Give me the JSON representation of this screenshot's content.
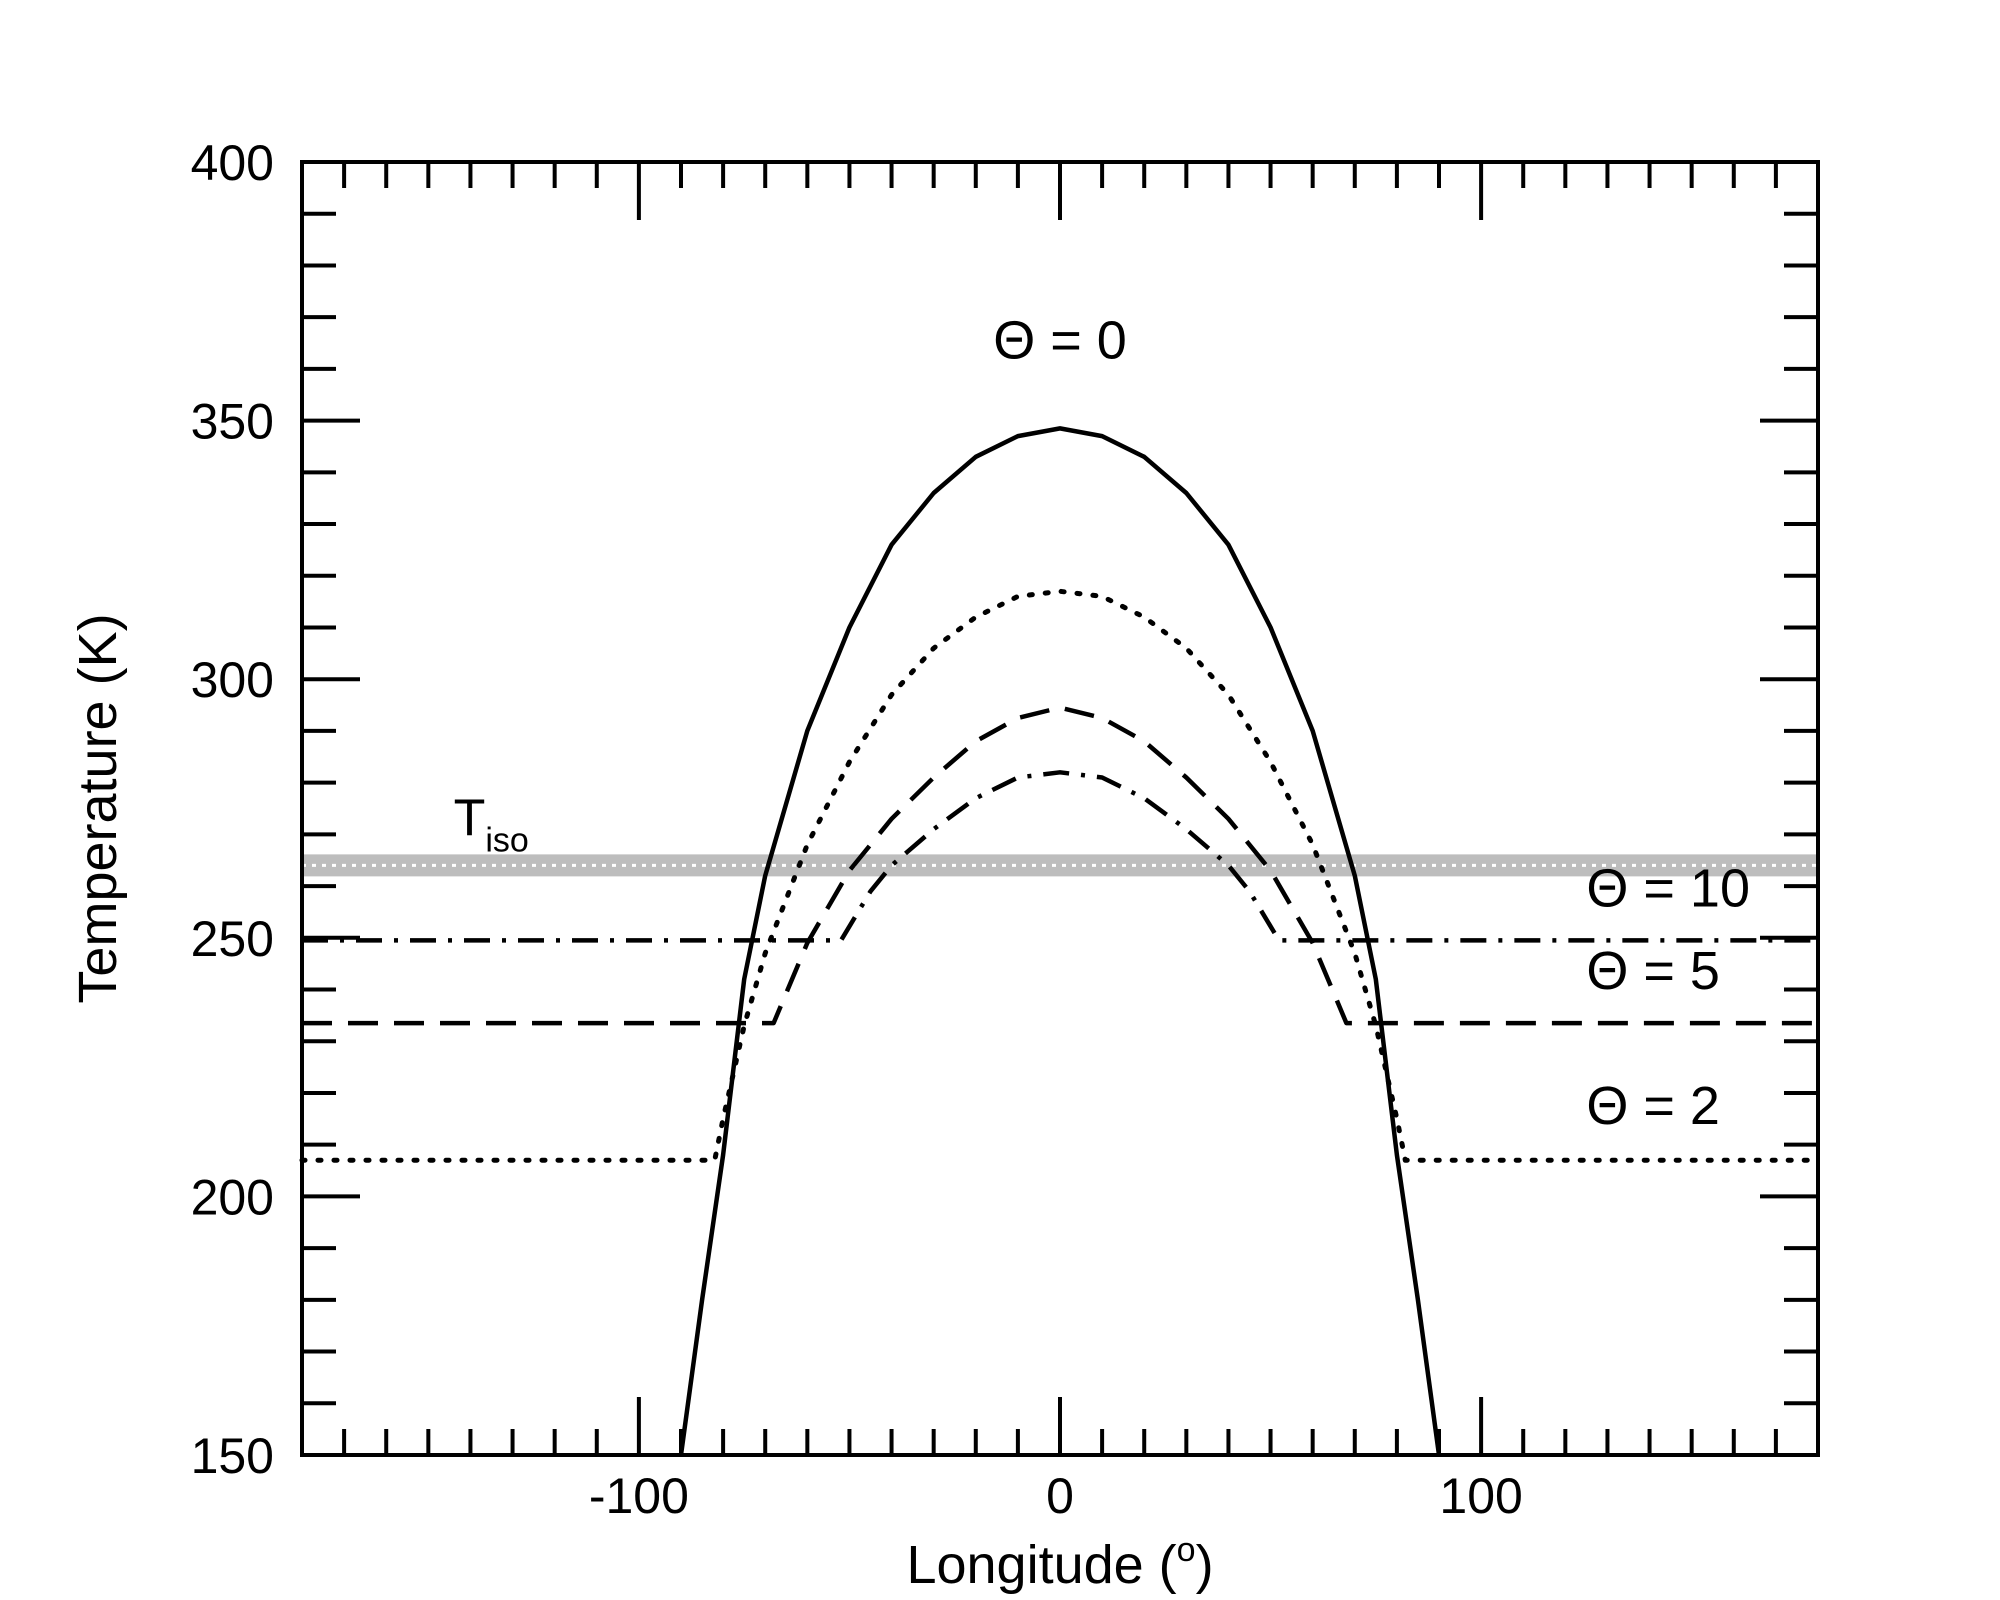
{
  "chart_data": {
    "type": "line",
    "title": "",
    "xlabel": "Longitude (",
    "xlabel_unit": "o",
    "xlabel_close": ")",
    "ylabel": "Temperature (K)",
    "xlim": [
      -180,
      180
    ],
    "ylim": [
      150,
      400
    ],
    "xticks": [
      -100,
      0,
      100
    ],
    "xtick_labels": [
      "-100",
      "0",
      "100"
    ],
    "yticks": [
      150,
      200,
      250,
      300,
      350,
      400
    ],
    "ytick_labels": [
      "150",
      "200",
      "250",
      "300",
      "350",
      "400"
    ],
    "x_minor_step": 10,
    "y_minor_step": 10,
    "grid": false,
    "legend": "none",
    "reference_line": {
      "label_main": "T",
      "label_sub": "iso",
      "y": 264,
      "color": "#bdbdbd"
    },
    "series": [
      {
        "annotation": "Θ = 0",
        "style": "solid",
        "peak": 348.5,
        "floor": null,
        "x": [
          -90,
          -85,
          -80,
          -75,
          -70,
          -60,
          -50,
          -40,
          -30,
          -20,
          -10,
          0,
          10,
          20,
          30,
          40,
          50,
          60,
          70,
          75,
          80,
          85,
          90
        ],
        "y": [
          150,
          180,
          208,
          242,
          262,
          290,
          310,
          326,
          336,
          343,
          347,
          348.5,
          347,
          343,
          336,
          326,
          310,
          290,
          262,
          242,
          208,
          180,
          150
        ]
      },
      {
        "annotation": "Θ = 2",
        "style": "dotted",
        "peak": 317,
        "floor": 207,
        "x": [
          -180,
          -82,
          -80,
          -75,
          -70,
          -60,
          -50,
          -40,
          -30,
          -20,
          -10,
          0,
          10,
          20,
          30,
          40,
          50,
          60,
          70,
          75,
          80,
          82,
          180
        ],
        "y": [
          207,
          207,
          215,
          233,
          247,
          268,
          284,
          297,
          306,
          312,
          316,
          317,
          316,
          312,
          306,
          297,
          284,
          268,
          247,
          233,
          215,
          207,
          207
        ]
      },
      {
        "annotation": "Θ = 5",
        "style": "dashed",
        "peak": 294.5,
        "floor": 233.5,
        "x": [
          -180,
          -68,
          -60,
          -50,
          -40,
          -30,
          -20,
          -10,
          0,
          10,
          20,
          30,
          40,
          50,
          60,
          68,
          180
        ],
        "y": [
          233.5,
          233.5,
          249,
          263,
          273,
          281,
          288,
          292.5,
          294.5,
          292.5,
          288,
          281,
          273,
          263,
          249,
          233.5,
          233.5
        ]
      },
      {
        "annotation": "Θ = 10",
        "style": "dashdot",
        "peak": 282,
        "floor": 249.5,
        "x": [
          -180,
          -52,
          -45,
          -40,
          -30,
          -20,
          -10,
          0,
          10,
          20,
          30,
          40,
          45,
          52,
          180
        ],
        "y": [
          249.5,
          249.5,
          259,
          264,
          271,
          277,
          281,
          282,
          281,
          277,
          271,
          264,
          259,
          249.5,
          249.5
        ]
      }
    ]
  }
}
